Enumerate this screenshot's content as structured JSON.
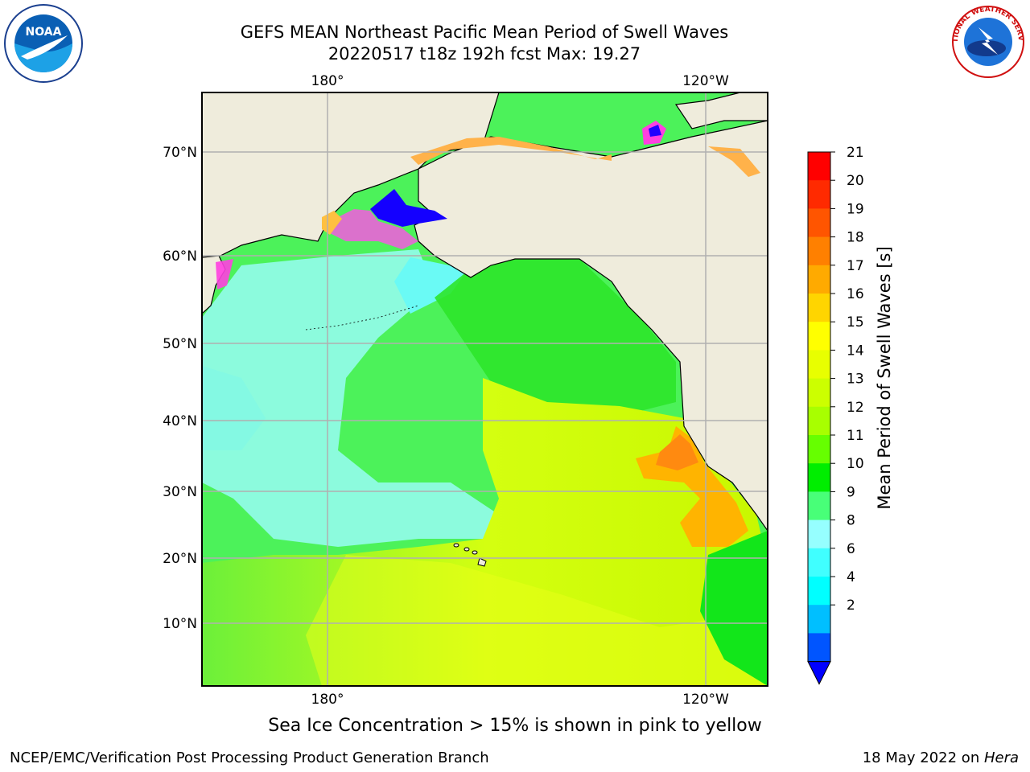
{
  "title": {
    "line1": "GEFS MEAN Northeast Pacific Mean Period of Swell Waves",
    "line2": "20220517 t18z 192h fcst   Max: 19.27"
  },
  "map": {
    "lon_labels": [
      "180°",
      "120°W"
    ],
    "lat_labels": [
      "70°N",
      "60°N",
      "50°N",
      "40°N",
      "30°N",
      "20°N",
      "10°N"
    ],
    "land_color": "#efecdc",
    "grid_color": "#b0b0b0"
  },
  "colorbar": {
    "label": "Mean Period of Swell Waves [s]",
    "ticks": [
      "21",
      "20",
      "19",
      "18",
      "17",
      "16",
      "15",
      "14",
      "13",
      "12",
      "11",
      "10",
      "9",
      "8",
      "6",
      "4",
      "2"
    ],
    "colors": [
      "#ff0000",
      "#ff2a00",
      "#ff5500",
      "#ff8000",
      "#ffaa00",
      "#ffd500",
      "#ffff00",
      "#e8ff00",
      "#ccff00",
      "#a8ff00",
      "#66ff00",
      "#00ee00",
      "#48ff78",
      "#96ffff",
      "#40ffff",
      "#00ffff",
      "#00bfff",
      "#0055ff"
    ],
    "under_color": "#0000ff"
  },
  "captions": {
    "ice": "Sea Ice Concentration > 15% is shown in pink to yellow",
    "producer": "NCEP/EMC/Verification Post Processing Product Generation Branch",
    "date": "18 May 2022 on ",
    "machine": "Hera"
  },
  "logos": {
    "noaa": "NOAA",
    "nws": "NATIONAL WEATHER SERVICE"
  }
}
